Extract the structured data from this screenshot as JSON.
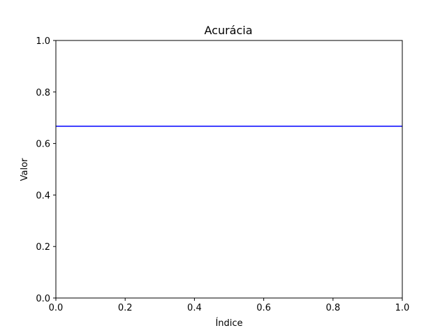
{
  "chart_data": {
    "type": "line",
    "title": "Acurácia",
    "xlabel": "Índice",
    "ylabel": "Valor",
    "xlim": [
      0.0,
      1.0
    ],
    "ylim": [
      0.0,
      1.0
    ],
    "xticks": [
      "0.0",
      "0.2",
      "0.4",
      "0.6",
      "0.8",
      "1.0"
    ],
    "yticks": [
      "0.0",
      "0.2",
      "0.4",
      "0.6",
      "0.8",
      "1.0"
    ],
    "grid": false,
    "series": [
      {
        "x": [
          0.0,
          1.0
        ],
        "values": [
          0.667,
          0.667
        ],
        "color": "#0000ff"
      }
    ]
  }
}
